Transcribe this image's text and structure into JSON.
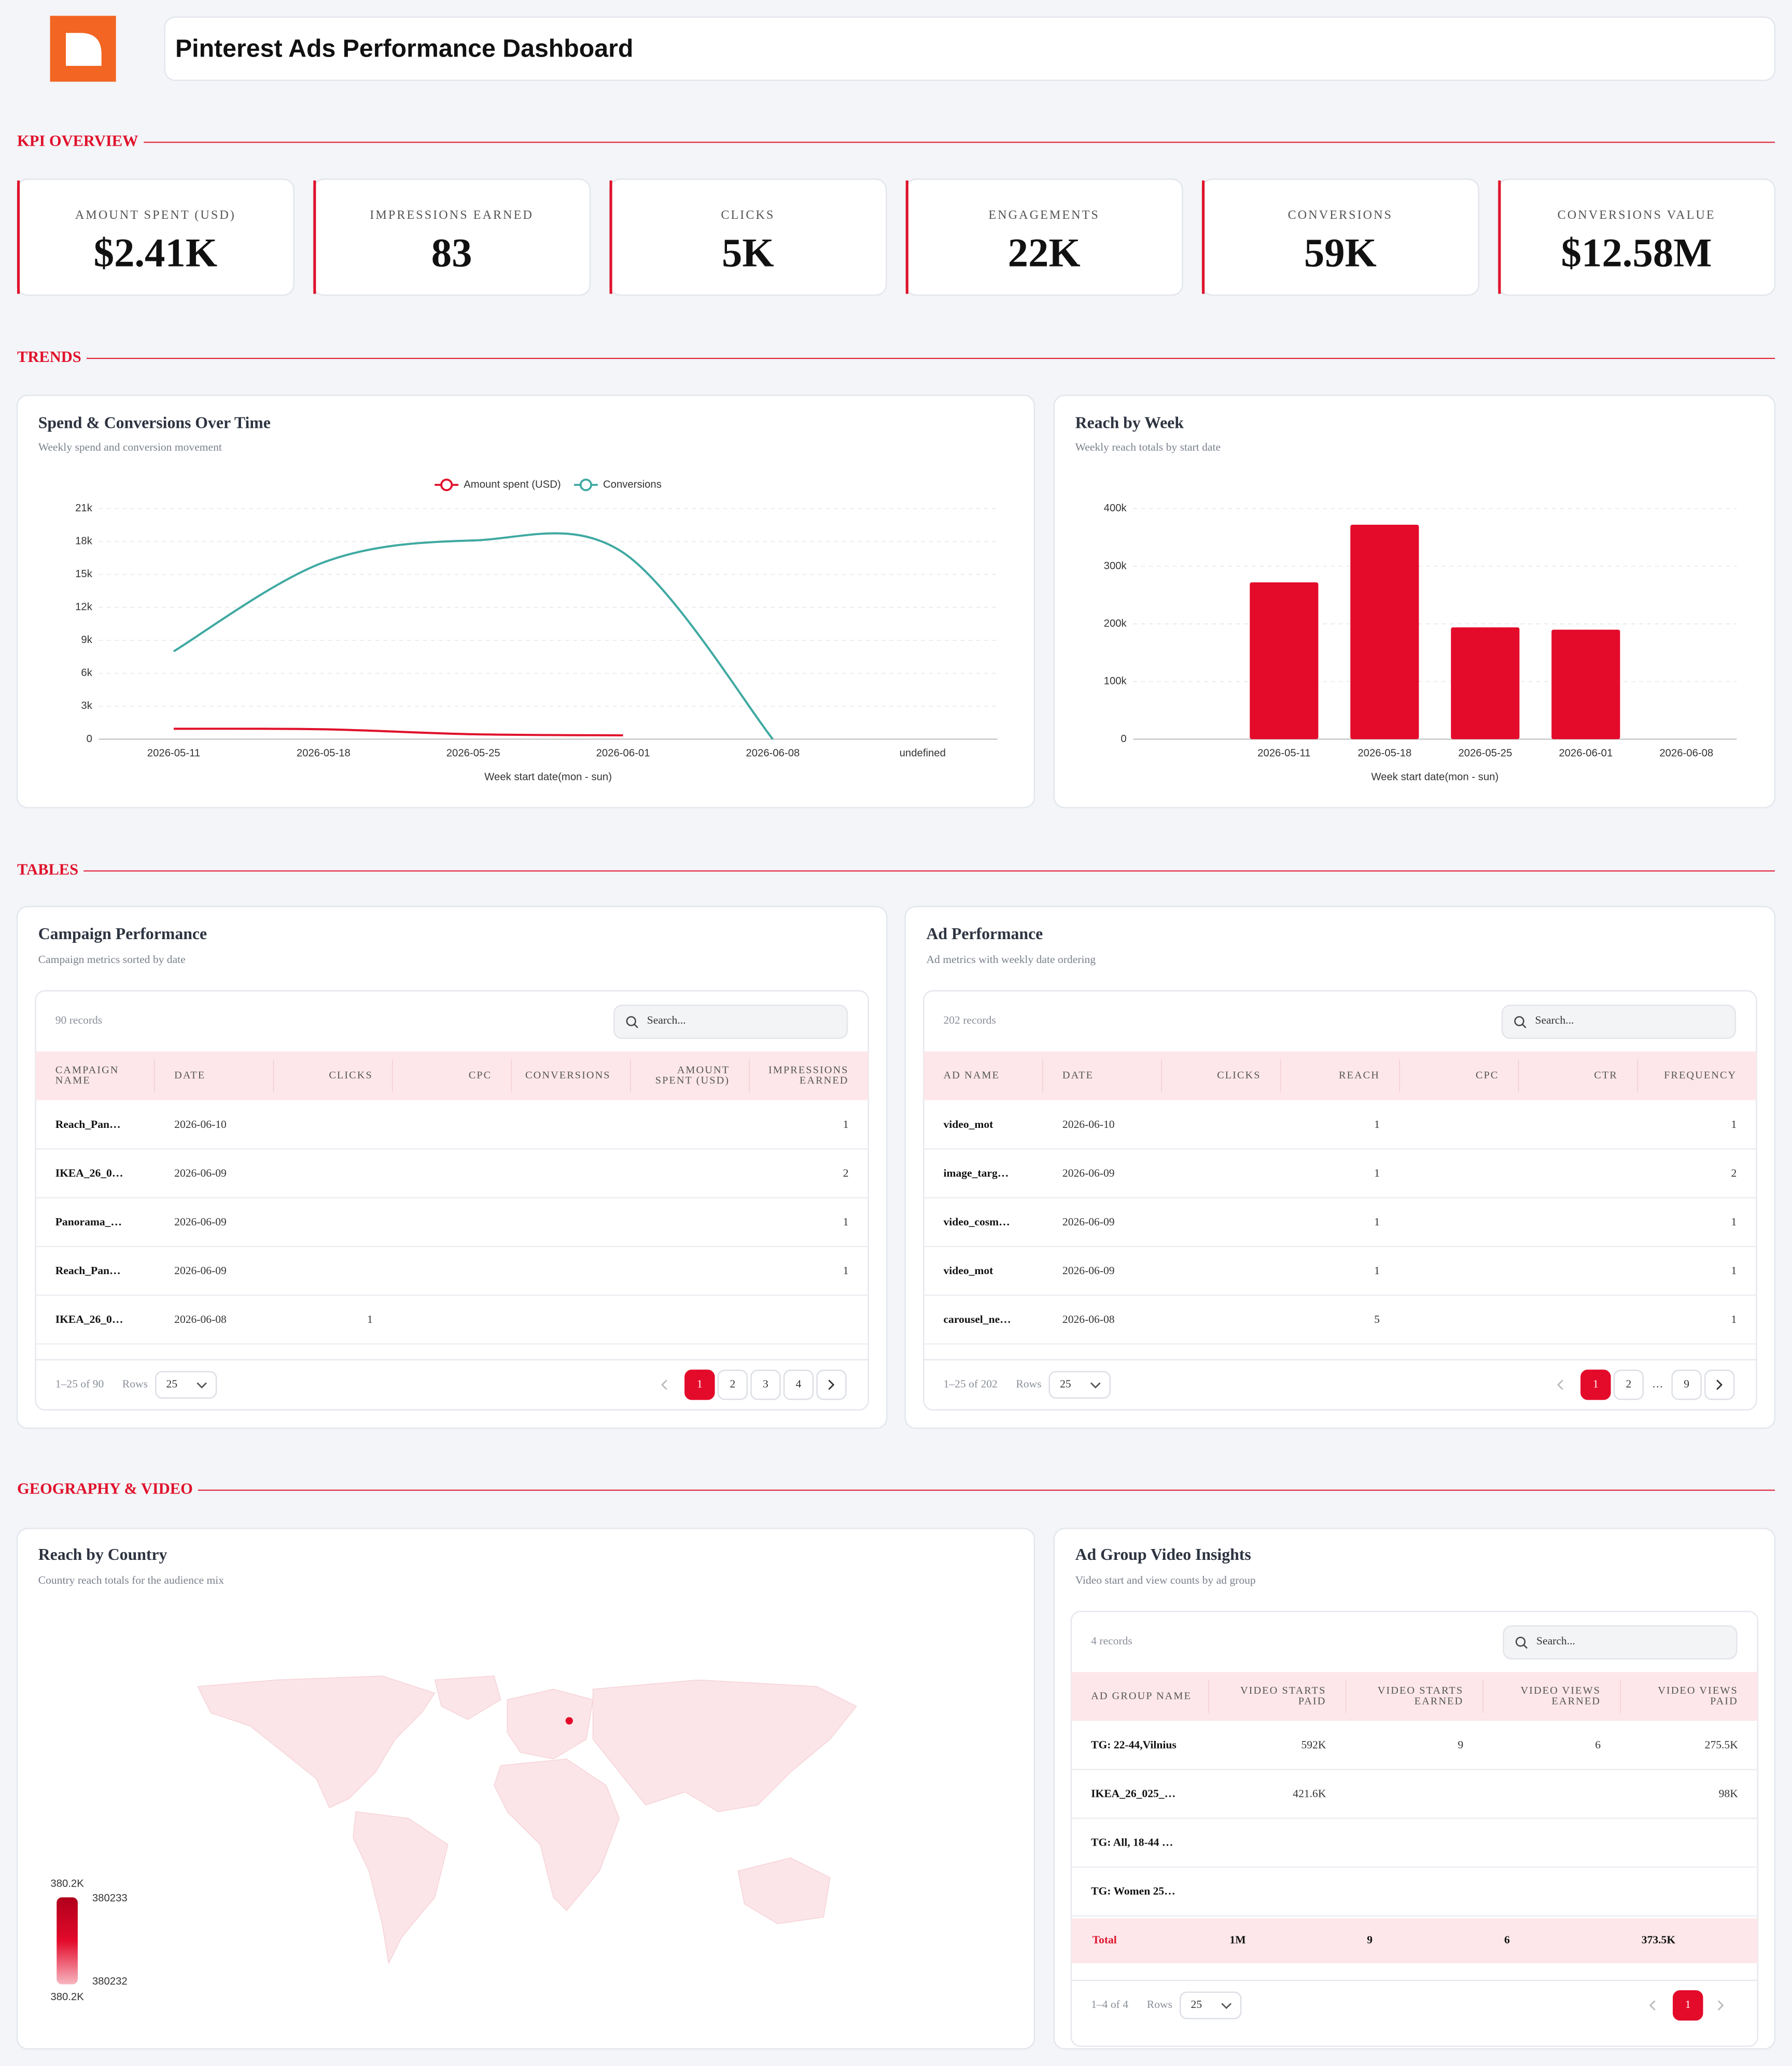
{
  "header": {
    "title": "Pinterest Ads Performance Dashboard"
  },
  "sections": [
    "KPI OVERVIEW",
    "TRENDS",
    "TABLES",
    "GEOGRAPHY & VIDEO"
  ],
  "kpis": [
    {
      "label": "AMOUNT SPENT (USD)",
      "value": "$2.41K"
    },
    {
      "label": "IMPRESSIONS EARNED",
      "value": "83"
    },
    {
      "label": "CLICKS",
      "value": "5K"
    },
    {
      "label": "ENGAGEMENTS",
      "value": "22K"
    },
    {
      "label": "CONVERSIONS",
      "value": "59K"
    },
    {
      "label": "CONVERSIONS VALUE",
      "value": "$12.58M"
    }
  ],
  "chart_data": [
    {
      "type": "line",
      "title": "Spend & Conversions Over Time",
      "subtitle": "Weekly spend and conversion movement",
      "x_label": "Week start date(mon - sun)",
      "categories": [
        "2026-05-11",
        "2026-05-18",
        "2026-05-25",
        "2026-06-01",
        "2026-06-08",
        "undefined"
      ],
      "series": [
        {
          "name": "Amount spent (USD)",
          "color": "#e0112b",
          "values": [
            950,
            900,
            450,
            350,
            null,
            null
          ]
        },
        {
          "name": "Conversions",
          "color": "#3fa9a2",
          "values": [
            8000,
            16100,
            18100,
            17000,
            0,
            null
          ]
        }
      ],
      "ylim": [
        0,
        21000
      ],
      "yticks": [
        0,
        {
          "value": 3000,
          "label": "3k"
        },
        {
          "value": 6000,
          "label": "6k"
        },
        {
          "value": 9000,
          "label": "9k"
        },
        {
          "value": 12000,
          "label": "12k"
        },
        {
          "value": 15000,
          "label": "15k"
        },
        {
          "value": 18000,
          "label": "18k"
        },
        {
          "value": 21000,
          "label": "21k"
        }
      ],
      "grid": true,
      "legend": "top"
    },
    {
      "type": "bar",
      "title": "Reach by Week",
      "subtitle": "Weekly reach totals by start date",
      "x_label": "Week start date(mon - sun)",
      "categories": [
        null,
        "2026-05-11",
        "2026-05-18",
        "2026-05-25",
        "2026-06-01",
        "2026-06-08"
      ],
      "values": [
        null,
        272000,
        372000,
        194000,
        190000,
        null
      ],
      "color": "#e30a2a",
      "ylim": [
        0,
        400000
      ],
      "yticks": [
        0,
        {
          "value": 100000,
          "label": "100k"
        },
        {
          "value": 200000,
          "label": "200k"
        },
        {
          "value": 300000,
          "label": "300k"
        },
        {
          "value": 400000,
          "label": "400k"
        }
      ],
      "grid": true
    }
  ],
  "tables": [
    {
      "title": "Campaign Performance",
      "subtitle": "Campaign metrics sorted by date",
      "records": "90 records",
      "search": "Search...",
      "columns": [
        "CAMPAIGN NAME",
        "DATE",
        "CLICKS",
        "CPC",
        "CONVERSIONS",
        "AMOUNT SPENT (USD)",
        "IMPRESSIONS EARNED"
      ],
      "rows": [
        [
          "Reach_Pan…",
          "2026-06-10",
          null,
          null,
          null,
          null,
          1
        ],
        [
          "IKEA_26_0…",
          "2026-06-09",
          null,
          null,
          null,
          null,
          2
        ],
        [
          "Panorama_…",
          "2026-06-09",
          null,
          null,
          null,
          null,
          1
        ],
        [
          "Reach_Pan…",
          "2026-06-09",
          null,
          null,
          null,
          null,
          1
        ],
        [
          "IKEA_26_0…",
          "2026-06-08",
          1,
          null,
          null,
          null,
          null
        ]
      ],
      "range": "1–25 of 90",
      "rows_label": "Rows",
      "rows_per_page": "25",
      "pages": [
        "1",
        "2",
        "3",
        "4"
      ]
    },
    {
      "title": "Ad Performance",
      "subtitle": "Ad metrics with weekly date ordering",
      "records": "202 records",
      "search": "Search...",
      "columns": [
        "AD NAME",
        "DATE",
        "CLICKS",
        "REACH",
        "CPC",
        "CTR",
        "FREQUENCY"
      ],
      "rows": [
        [
          "video_mot",
          "2026-06-10",
          null,
          1,
          null,
          null,
          1
        ],
        [
          "image_targ…",
          "2026-06-09",
          null,
          1,
          null,
          null,
          2
        ],
        [
          "video_cosm…",
          "2026-06-09",
          null,
          1,
          null,
          null,
          1
        ],
        [
          "video_mot",
          "2026-06-09",
          null,
          1,
          null,
          null,
          1
        ],
        [
          "carousel_ne…",
          "2026-06-08",
          null,
          5,
          null,
          null,
          1
        ]
      ],
      "range": "1–25 of 202",
      "rows_label": "Rows",
      "rows_per_page": "25",
      "pages": [
        "1",
        "2",
        "…",
        "9"
      ]
    },
    {
      "title": "Ad Group Video Insights",
      "subtitle": "Video start and view counts by ad group",
      "records": "4 records",
      "search": "Search...",
      "columns": [
        "AD GROUP NAME",
        "VIDEO STARTS PAID",
        "VIDEO STARTS EARNED",
        "VIDEO VIEWS EARNED",
        "VIDEO VIEWS PAID"
      ],
      "rows": [
        [
          "TG: 22-44,Vilnius",
          "592K",
          "9",
          "6",
          "275.5K"
        ],
        [
          "IKEA_26_025_…",
          "421.6K",
          null,
          null,
          "98K"
        ],
        [
          "TG: All, 18-44 …",
          null,
          null,
          null,
          null
        ],
        [
          "TG: Women 25…",
          null,
          null,
          null,
          null
        ]
      ],
      "total": [
        "Total",
        "1M",
        "9",
        "6",
        "373.5K"
      ],
      "range": "1–4 of 4",
      "rows_label": "Rows",
      "rows_per_page": "25",
      "pages": [
        "1"
      ]
    }
  ],
  "map": {
    "title": "Reach by Country",
    "subtitle": "Country reach totals for the audience mix",
    "legend_top": "380.2K",
    "legend_max": "380233",
    "legend_min": "380232",
    "legend_bottom": "380.2K"
  }
}
